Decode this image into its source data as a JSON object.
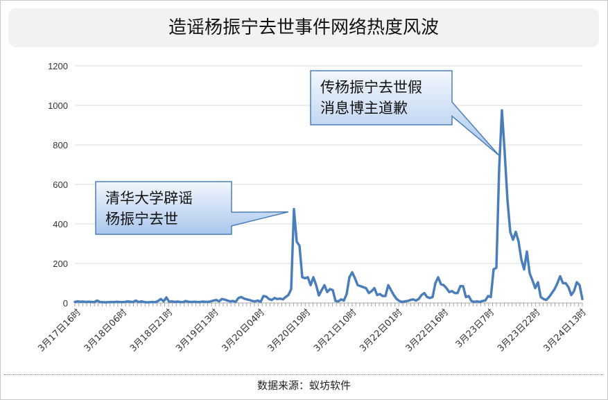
{
  "header": {
    "title": "造谣杨振宁去世事件网络热度风波"
  },
  "footer": {
    "source": "数据来源：蚁坊软件"
  },
  "colors": {
    "line": "#4a7ebb",
    "callout_fill_top": "#f2f7fd",
    "callout_fill_bottom": "#a9c6ec",
    "callout_border": "#4a7ebb"
  },
  "chart_data": {
    "type": "line",
    "title": "造谣杨振宁去世事件网络热度风波",
    "xlabel": "",
    "ylabel": "",
    "ylim": [
      0,
      1200
    ],
    "yticks": [
      0,
      200,
      400,
      600,
      800,
      1000,
      1200
    ],
    "grid": true,
    "legend": "none",
    "xtick_labels": [
      "3月17日16时",
      "3月18日06时",
      "3月18日21时",
      "3月19日13时",
      "3月20日04时",
      "3月20日19时",
      "3月21日10时",
      "3月22日01时",
      "3月22日16时",
      "3月23日7时",
      "3月23日22时",
      "3月24日13时"
    ],
    "series": [
      {
        "values": [
          5,
          8,
          6,
          7,
          5,
          6,
          5,
          4,
          12,
          5,
          4,
          3,
          4,
          5,
          4,
          6,
          5,
          4,
          5,
          8,
          6,
          5,
          12,
          4,
          8,
          5,
          3,
          4,
          5,
          4,
          10,
          20,
          8,
          28,
          6,
          8,
          5,
          7,
          5,
          4,
          10,
          6,
          5,
          6,
          5,
          4,
          7,
          6,
          5,
          8,
          12,
          15,
          8,
          20,
          17,
          12,
          8,
          10,
          6,
          25,
          30,
          22,
          18,
          15,
          10,
          8,
          12,
          6,
          35,
          32,
          20,
          15,
          25,
          20,
          22,
          18,
          30,
          40,
          70,
          475,
          310,
          290,
          130,
          125,
          130,
          90,
          130,
          90,
          38,
          65,
          90,
          55,
          70,
          65,
          10,
          8,
          18,
          12,
          45,
          130,
          155,
          125,
          90,
          85,
          80,
          75,
          50,
          60,
          75,
          40,
          45,
          35,
          35,
          90,
          65,
          40,
          20,
          10,
          5,
          8,
          10,
          15,
          18,
          12,
          20,
          40,
          50,
          30,
          25,
          30,
          100,
          130,
          95,
          90,
          75,
          55,
          60,
          50,
          50,
          85,
          85,
          30,
          35,
          10,
          5,
          8,
          5,
          10,
          12,
          35,
          30,
          170,
          178,
          680,
          975,
          760,
          520,
          360,
          320,
          360,
          310,
          220,
          170,
          260,
          150,
          115,
          75,
          105,
          30,
          20,
          15,
          30,
          50,
          70,
          100,
          135,
          100,
          100,
          80,
          40,
          60,
          105,
          90,
          20
        ]
      }
    ],
    "annotations": [
      {
        "text_lines": [
          "清华大学辟谣",
          "杨振宁去世"
        ],
        "target_index": 79
      },
      {
        "text_lines": [
          "传杨振宁去世假",
          "消息博主道歉"
        ],
        "target_index": 155
      }
    ]
  }
}
